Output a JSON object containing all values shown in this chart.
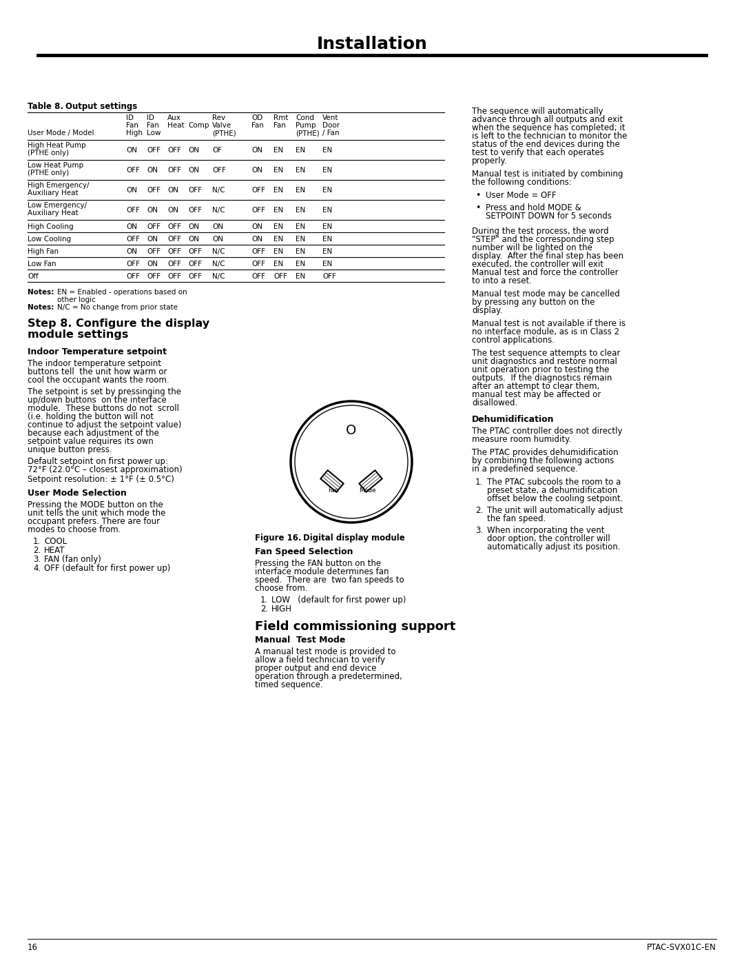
{
  "title": "Installation",
  "page_num": "16",
  "page_right": "PTAC-SVX01C-EN",
  "bg_color": "#ffffff",
  "table_rows": [
    [
      "High Heat Pump\n(PTHE only)",
      "ON",
      "OFF",
      "OFF",
      "ON",
      "OF",
      "ON",
      "EN",
      "EN",
      "EN"
    ],
    [
      "Low Heat Pump\n(PTHE only)",
      "OFF",
      "ON",
      "OFF",
      "ON",
      "OFF",
      "ON",
      "EN",
      "EN",
      "EN"
    ],
    [
      "High Emergency/\nAuxiliary Heat",
      "ON",
      "OFF",
      "ON",
      "OFF",
      "N/C",
      "OFF",
      "EN",
      "EN",
      "EN"
    ],
    [
      "Low Emergency/\nAuxiliary Heat",
      "OFF",
      "ON",
      "ON",
      "OFF",
      "N/C",
      "OFF",
      "EN",
      "EN",
      "EN"
    ],
    [
      "High Cooling",
      "ON",
      "OFF",
      "OFF",
      "ON",
      "ON",
      "ON",
      "EN",
      "EN",
      "EN"
    ],
    [
      "Low Cooling",
      "OFF",
      "ON",
      "OFF",
      "ON",
      "ON",
      "ON",
      "EN",
      "EN",
      "EN"
    ],
    [
      "High Fan",
      "ON",
      "OFF",
      "OFF",
      "OFF",
      "N/C",
      "OFF",
      "EN",
      "EN",
      "EN"
    ],
    [
      "Low Fan",
      "OFF",
      "ON",
      "OFF",
      "OFF",
      "N/C",
      "OFF",
      "EN",
      "EN",
      "EN"
    ],
    [
      "Off",
      "OFF",
      "OFF",
      "OFF",
      "OFF",
      "N/C",
      "OFF",
      "OFF",
      "EN",
      "OFF"
    ]
  ]
}
